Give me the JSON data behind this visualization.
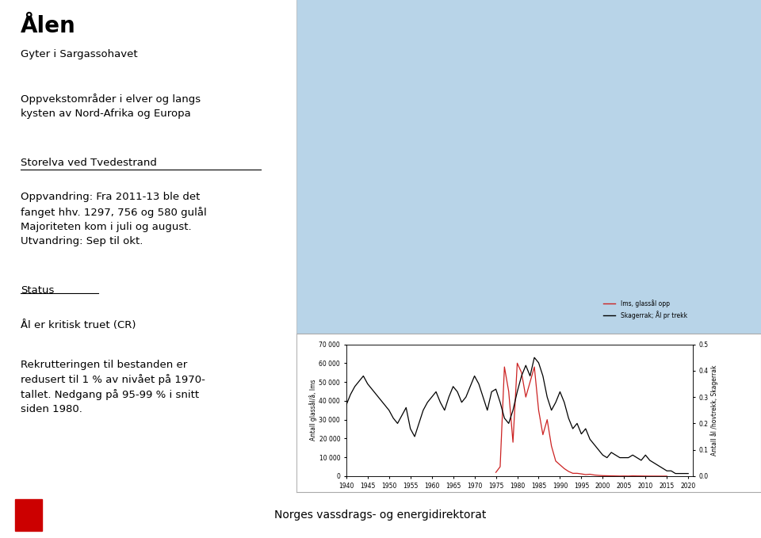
{
  "title": "Ålen",
  "subtitle": "Gyter i Sargassohavet",
  "para1": "Oppvekstområder i elver og langs\nkysten av Nord-Afrika og Europa",
  "underline1": "Storelva ved Tvedestrand",
  "para2": "Oppvandring: Fra 2011-13 ble det\nfanget hhv. 1297, 756 og 580 gulål\nMajoriteten kom i juli og august.\nUtvandring: Sep til okt.",
  "underline2": "Status",
  "para3": "Ål er kritisk truet (CR)",
  "para4": "Rekrutteringen til bestanden er\nredusert til 1 % av nivået på 1970-\ntallet. Nedgang på 95-99 % i snitt\nsiden 1980.",
  "footer": "Norges vassdrags- og energidirektorat",
  "years_black": [
    1940,
    1941,
    1942,
    1943,
    1944,
    1945,
    1946,
    1947,
    1948,
    1949,
    1950,
    1951,
    1952,
    1953,
    1954,
    1955,
    1956,
    1957,
    1958,
    1959,
    1960,
    1961,
    1962,
    1963,
    1964,
    1965,
    1966,
    1967,
    1968,
    1969,
    1970,
    1971,
    1972,
    1973,
    1974,
    1975,
    1976,
    1977,
    1978,
    1979,
    1980,
    1981,
    1982,
    1983,
    1984,
    1985,
    1986,
    1987,
    1988,
    1989,
    1990,
    1991,
    1992,
    1993,
    1994,
    1995,
    1996,
    1997,
    1998,
    1999,
    2000,
    2001,
    2002,
    2003,
    2004,
    2005,
    2006,
    2007,
    2008,
    2009,
    2010,
    2011,
    2012,
    2013,
    2014,
    2015,
    2016,
    2017,
    2018,
    2019,
    2020
  ],
  "values_black": [
    0.27,
    0.31,
    0.34,
    0.36,
    0.38,
    0.35,
    0.33,
    0.31,
    0.29,
    0.27,
    0.25,
    0.22,
    0.2,
    0.23,
    0.26,
    0.18,
    0.15,
    0.2,
    0.25,
    0.28,
    0.3,
    0.32,
    0.28,
    0.25,
    0.3,
    0.34,
    0.32,
    0.28,
    0.3,
    0.34,
    0.38,
    0.35,
    0.3,
    0.25,
    0.32,
    0.33,
    0.28,
    0.22,
    0.2,
    0.25,
    0.32,
    0.38,
    0.42,
    0.38,
    0.45,
    0.43,
    0.38,
    0.3,
    0.25,
    0.28,
    0.32,
    0.28,
    0.22,
    0.18,
    0.2,
    0.16,
    0.18,
    0.14,
    0.12,
    0.1,
    0.08,
    0.07,
    0.09,
    0.08,
    0.07,
    0.07,
    0.07,
    0.08,
    0.07,
    0.06,
    0.08,
    0.06,
    0.05,
    0.04,
    0.03,
    0.02,
    0.02,
    0.01,
    0.01,
    0.01,
    0.01
  ],
  "years_red": [
    1975,
    1976,
    1977,
    1978,
    1979,
    1980,
    1981,
    1982,
    1983,
    1984,
    1985,
    1986,
    1987,
    1988,
    1989,
    1990,
    1991,
    1992,
    1993,
    1994,
    1995,
    1996,
    1997,
    1998,
    1999,
    2000,
    2001,
    2002,
    2003,
    2004,
    2005,
    2006,
    2007,
    2008,
    2009,
    2010,
    2011,
    2012,
    2013,
    2014,
    2015
  ],
  "values_red": [
    2000,
    5000,
    58000,
    45000,
    18000,
    60000,
    55000,
    42000,
    50000,
    58000,
    35000,
    22000,
    30000,
    16000,
    8000,
    6000,
    4000,
    2500,
    1500,
    1500,
    1200,
    800,
    1000,
    600,
    400,
    250,
    200,
    150,
    100,
    50,
    80,
    40,
    150,
    100,
    80,
    40,
    20,
    15,
    8,
    3,
    2
  ],
  "ylabel_left": "Antall glassål/å, Ims",
  "ylabel_right": "Antall ål /hovtrekk, Skagerrak",
  "legend_red": "Ims, glassål opp",
  "legend_black": "Skagerrak; Ål pr trekk",
  "ylim_left": [
    0,
    70000
  ],
  "ylim_right": [
    0.0,
    0.5
  ],
  "yticks_left": [
    0,
    10000,
    20000,
    30000,
    40000,
    50000,
    60000,
    70000
  ],
  "yticks_right": [
    0.0,
    0.1,
    0.2,
    0.3,
    0.4,
    0.5
  ],
  "ytick_labels_left": [
    "0",
    "10 000",
    "20 000",
    "30 000",
    "40 000",
    "50 000",
    "60 000",
    "70 000"
  ],
  "ytick_labels_right": [
    "0.0",
    "0.1",
    "0.2",
    "0.3",
    "0.4",
    "0.5"
  ],
  "xticks": [
    1940,
    1945,
    1950,
    1955,
    1960,
    1965,
    1970,
    1975,
    1980,
    1985,
    1990,
    1995,
    2000,
    2005,
    2010,
    2015,
    2020
  ],
  "map_bg": "#b8d4e8",
  "chart_border_color": "#aaaaaa",
  "left_bg": "#ffffff",
  "footer_bg": "#cccccc",
  "nve_logo_color": "#cc0000",
  "line_red_color": "#cc2222",
  "line_black_color": "#000000",
  "divider_color": "#bbbbbb"
}
